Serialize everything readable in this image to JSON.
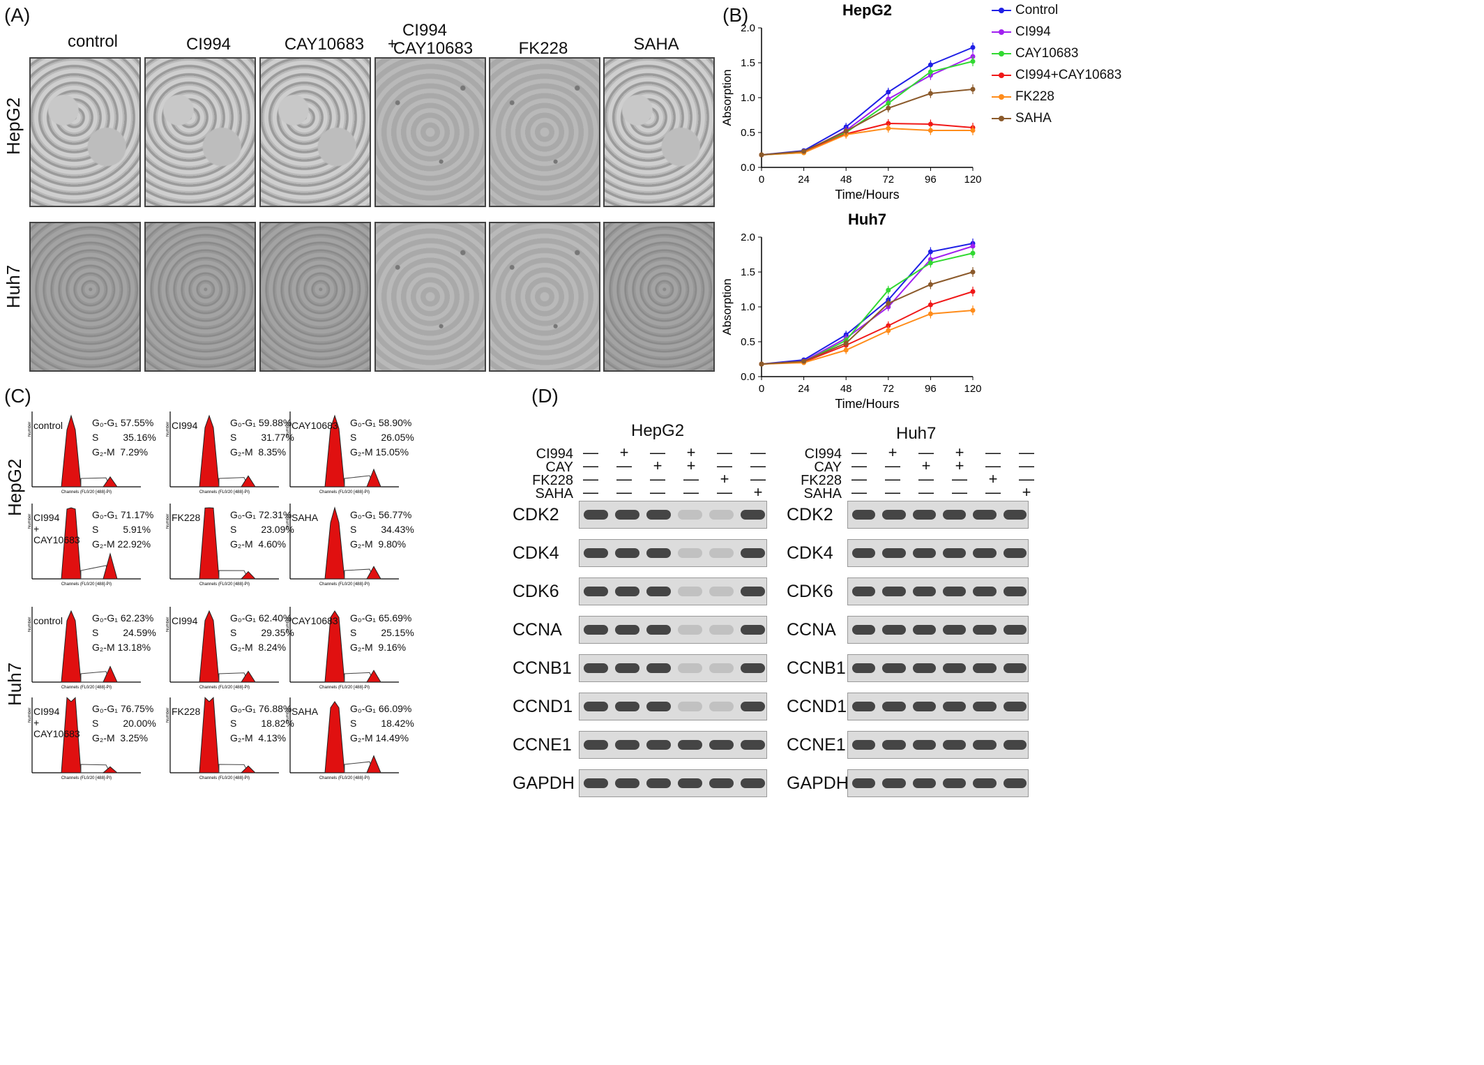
{
  "panels": {
    "A": "(A)",
    "B": "(B)",
    "C": "(C)",
    "D": "(D)"
  },
  "panel_a": {
    "columns": [
      "control",
      "CI994",
      "CAY10683",
      "+ CI994\nCAY10683",
      "FK228",
      "SAHA"
    ],
    "col_combo_line1": "CI994",
    "col_combo_line2": "CAY10683",
    "col_combo_plus": "+",
    "rows": [
      "HepG2",
      "Huh7"
    ]
  },
  "panel_b": {
    "legend": [
      {
        "name": "Control",
        "color": "#1f1fe6"
      },
      {
        "name": "CI994",
        "color": "#a020f0"
      },
      {
        "name": "CAY10683",
        "color": "#32d932"
      },
      {
        "name": "CI994+CAY10683",
        "color": "#f01818"
      },
      {
        "name": "FK228",
        "color": "#ff8c1a"
      },
      {
        "name": "SAHA",
        "color": "#8b5a2b"
      }
    ]
  },
  "chart_data": [
    {
      "type": "line",
      "title": "HepG2",
      "xlabel": "Time/Hours",
      "ylabel": "Absorption",
      "x": [
        0,
        24,
        48,
        72,
        96,
        120
      ],
      "xlim": [
        0,
        120
      ],
      "ylim": [
        0,
        2.0
      ],
      "yticks": [
        "0.0",
        "0.5",
        "1.0",
        "1.5",
        "2.0"
      ],
      "xticks": [
        "0",
        "24",
        "48",
        "72",
        "96",
        "120"
      ],
      "series": [
        {
          "name": "Control",
          "values": [
            0.18,
            0.24,
            0.58,
            1.08,
            1.47,
            1.72
          ],
          "color": "#1f1fe6"
        },
        {
          "name": "CI994",
          "values": [
            0.18,
            0.22,
            0.53,
            0.98,
            1.32,
            1.59
          ],
          "color": "#a020f0"
        },
        {
          "name": "CAY10683",
          "values": [
            0.18,
            0.21,
            0.5,
            0.92,
            1.37,
            1.52
          ],
          "color": "#32d932"
        },
        {
          "name": "CI994+CAY10683",
          "values": [
            0.18,
            0.22,
            0.48,
            0.63,
            0.62,
            0.57
          ],
          "color": "#f01818"
        },
        {
          "name": "FK228",
          "values": [
            0.18,
            0.21,
            0.47,
            0.56,
            0.53,
            0.53
          ],
          "color": "#ff8c1a"
        },
        {
          "name": "SAHA",
          "values": [
            0.18,
            0.23,
            0.52,
            0.85,
            1.06,
            1.12
          ],
          "color": "#8b5a2b"
        }
      ]
    },
    {
      "type": "line",
      "title": "Huh7",
      "xlabel": "Time/Hours",
      "ylabel": "Absorption",
      "x": [
        0,
        24,
        48,
        72,
        96,
        120
      ],
      "xlim": [
        0,
        120
      ],
      "ylim": [
        0,
        2.0
      ],
      "yticks": [
        "0.0",
        "0.5",
        "1.0",
        "1.5",
        "2.0"
      ],
      "xticks": [
        "0",
        "24",
        "48",
        "72",
        "96",
        "120"
      ],
      "series": [
        {
          "name": "Control",
          "values": [
            0.18,
            0.24,
            0.6,
            1.1,
            1.79,
            1.91
          ],
          "color": "#1f1fe6"
        },
        {
          "name": "CI994",
          "values": [
            0.18,
            0.22,
            0.55,
            1.0,
            1.68,
            1.87
          ],
          "color": "#a020f0"
        },
        {
          "name": "CAY10683",
          "values": [
            0.18,
            0.21,
            0.52,
            1.24,
            1.63,
            1.77
          ],
          "color": "#32d932"
        },
        {
          "name": "CI994+CAY10683",
          "values": [
            0.18,
            0.21,
            0.45,
            0.73,
            1.03,
            1.22
          ],
          "color": "#f01818"
        },
        {
          "name": "FK228",
          "values": [
            0.18,
            0.2,
            0.38,
            0.66,
            0.9,
            0.95
          ],
          "color": "#ff8c1a"
        },
        {
          "name": "SAHA",
          "values": [
            0.18,
            0.22,
            0.48,
            1.05,
            1.32,
            1.5
          ],
          "color": "#8b5a2b"
        }
      ]
    }
  ],
  "panel_c": {
    "row_labels": [
      "HepG2",
      "Huh7"
    ],
    "axis_y": "Number",
    "histograms": [
      {
        "label": "control",
        "g0g1": "G₀-G₁ 57.55%",
        "s": "S         35.16%",
        "g2m": "G₂-M  7.29%",
        "xaxis": "Channels (FL0/20 [488]-PI)"
      },
      {
        "label": "CI994",
        "g0g1": "G₀-G₁ 59.88%",
        "s": "S         31.77%",
        "g2m": "G₂-M  8.35%",
        "xaxis": "Channels (FL0/20 [488]-PI)"
      },
      {
        "label": "CAY10683",
        "g0g1": "G₀-G₁ 58.90%",
        "s": "S         26.05%",
        "g2m": "G₂-M 15.05%",
        "xaxis": "Channels (FL0/20 [488]-PI)"
      },
      {
        "label": "CI994\n+\nCAY10683",
        "g0g1": "G₀-G₁ 71.17%",
        "s": "S         5.91%",
        "g2m": "G₂-M 22.92%",
        "xaxis": "Channels (FL0/20 [488]-PI)"
      },
      {
        "label": "FK228",
        "g0g1": "G₀-G₁ 72.31%",
        "s": "S         23.09%",
        "g2m": "G₂-M  4.60%",
        "xaxis": "Channels (FL0/20 [488]-PI)"
      },
      {
        "label": "SAHA",
        "g0g1": "G₀-G₁ 56.77%",
        "s": "S         34.43%",
        "g2m": "G₂-M  9.80%",
        "xaxis": "Channels (FL0/20 [488]-PI)"
      },
      {
        "label": "control",
        "g0g1": "G₀-G₁ 62.23%",
        "s": "S         24.59%",
        "g2m": "G₂-M 13.18%",
        "xaxis": "Channels (FL0/20 [488]-PI)"
      },
      {
        "label": "CI994",
        "g0g1": "G₀-G₁ 62.40%",
        "s": "S         29.35%",
        "g2m": "G₂-M  8.24%",
        "xaxis": "Channels (FL0/20 [488]-PI)"
      },
      {
        "label": "CAY10683",
        "g0g1": "G₀-G₁ 65.69%",
        "s": "S         25.15%",
        "g2m": "G₂-M  9.16%",
        "xaxis": "Channels (FL0/20 [488]-PI)"
      },
      {
        "label": "CI994\n+\nCAY10683",
        "g0g1": "G₀-G₁ 76.75%",
        "s": "S         20.00%",
        "g2m": "G₂-M  3.25%",
        "xaxis": "Channels (FL0/20 [488]-PI)"
      },
      {
        "label": "FK228",
        "g0g1": "G₀-G₁ 76.88%",
        "s": "S         18.82%",
        "g2m": "G₂-M  4.13%",
        "xaxis": "Channels (FL0/20 [488]-PI)"
      },
      {
        "label": "SAHA",
        "g0g1": "G₀-G₁ 66.09%",
        "s": "S         18.42%",
        "g2m": "G₂-M 14.49%",
        "xaxis": "Channels (FL0/20 [488]-PI)"
      }
    ]
  },
  "panel_d": {
    "blots": [
      {
        "title": "HepG2",
        "treatments": [
          "CI994",
          "CAY",
          "FK228",
          "SAHA"
        ],
        "signs": [
          [
            "—",
            "+",
            "—",
            "+",
            "—",
            "—"
          ],
          [
            "—",
            "—",
            "+",
            "+",
            "—",
            "—"
          ],
          [
            "—",
            "—",
            "—",
            "—",
            "+",
            "—"
          ],
          [
            "—",
            "—",
            "—",
            "—",
            "—",
            "+"
          ]
        ],
        "proteins": [
          "CDK2",
          "CDK4",
          "CDK6",
          "CCNA",
          "CCNB1",
          "CCND1",
          "CCNE1",
          "GAPDH"
        ]
      },
      {
        "title": "Huh7",
        "treatments": [
          "CI994",
          "CAY",
          "FK228",
          "SAHA"
        ],
        "signs": [
          [
            "—",
            "+",
            "—",
            "+",
            "—",
            "—"
          ],
          [
            "—",
            "—",
            "+",
            "+",
            "—",
            "—"
          ],
          [
            "—",
            "—",
            "—",
            "—",
            "+",
            "—"
          ],
          [
            "—",
            "—",
            "—",
            "—",
            "—",
            "+"
          ]
        ],
        "proteins": [
          "CDK2",
          "CDK4",
          "CDK6",
          "CCNA",
          "CCNB1",
          "CCND1",
          "CCNE1",
          "GAPDH"
        ]
      }
    ]
  }
}
